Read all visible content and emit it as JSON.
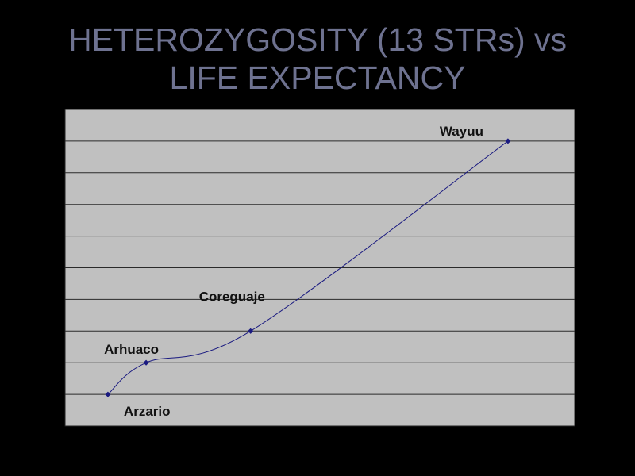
{
  "title_line1": "HETEROZYGOSITY (13 STRs) vs",
  "title_line2": "LIFE EXPECTANCY",
  "colors": {
    "background": "#000000",
    "plot_bg": "#c0c0c0",
    "grid": "#2a2a2a",
    "line": "#1a1a80",
    "title": "#6e7290"
  },
  "chart_data": {
    "type": "line",
    "title": "HETEROZYGOSITY (13 STRs) vs LIFE EXPECTANCY",
    "xlabel": "",
    "ylabel": "",
    "xlim": [
      0,
      100
    ],
    "ylim": [
      0,
      10
    ],
    "grid": true,
    "smoothed": true,
    "points": [
      {
        "label": "Arzario",
        "x": 8.4,
        "y": 1
      },
      {
        "label": "Arhuaco",
        "x": 15.9,
        "y": 2
      },
      {
        "label": "Coreguaje",
        "x": 36.4,
        "y": 3
      },
      {
        "label": "Wayuu",
        "x": 86.9,
        "y": 9
      }
    ]
  }
}
